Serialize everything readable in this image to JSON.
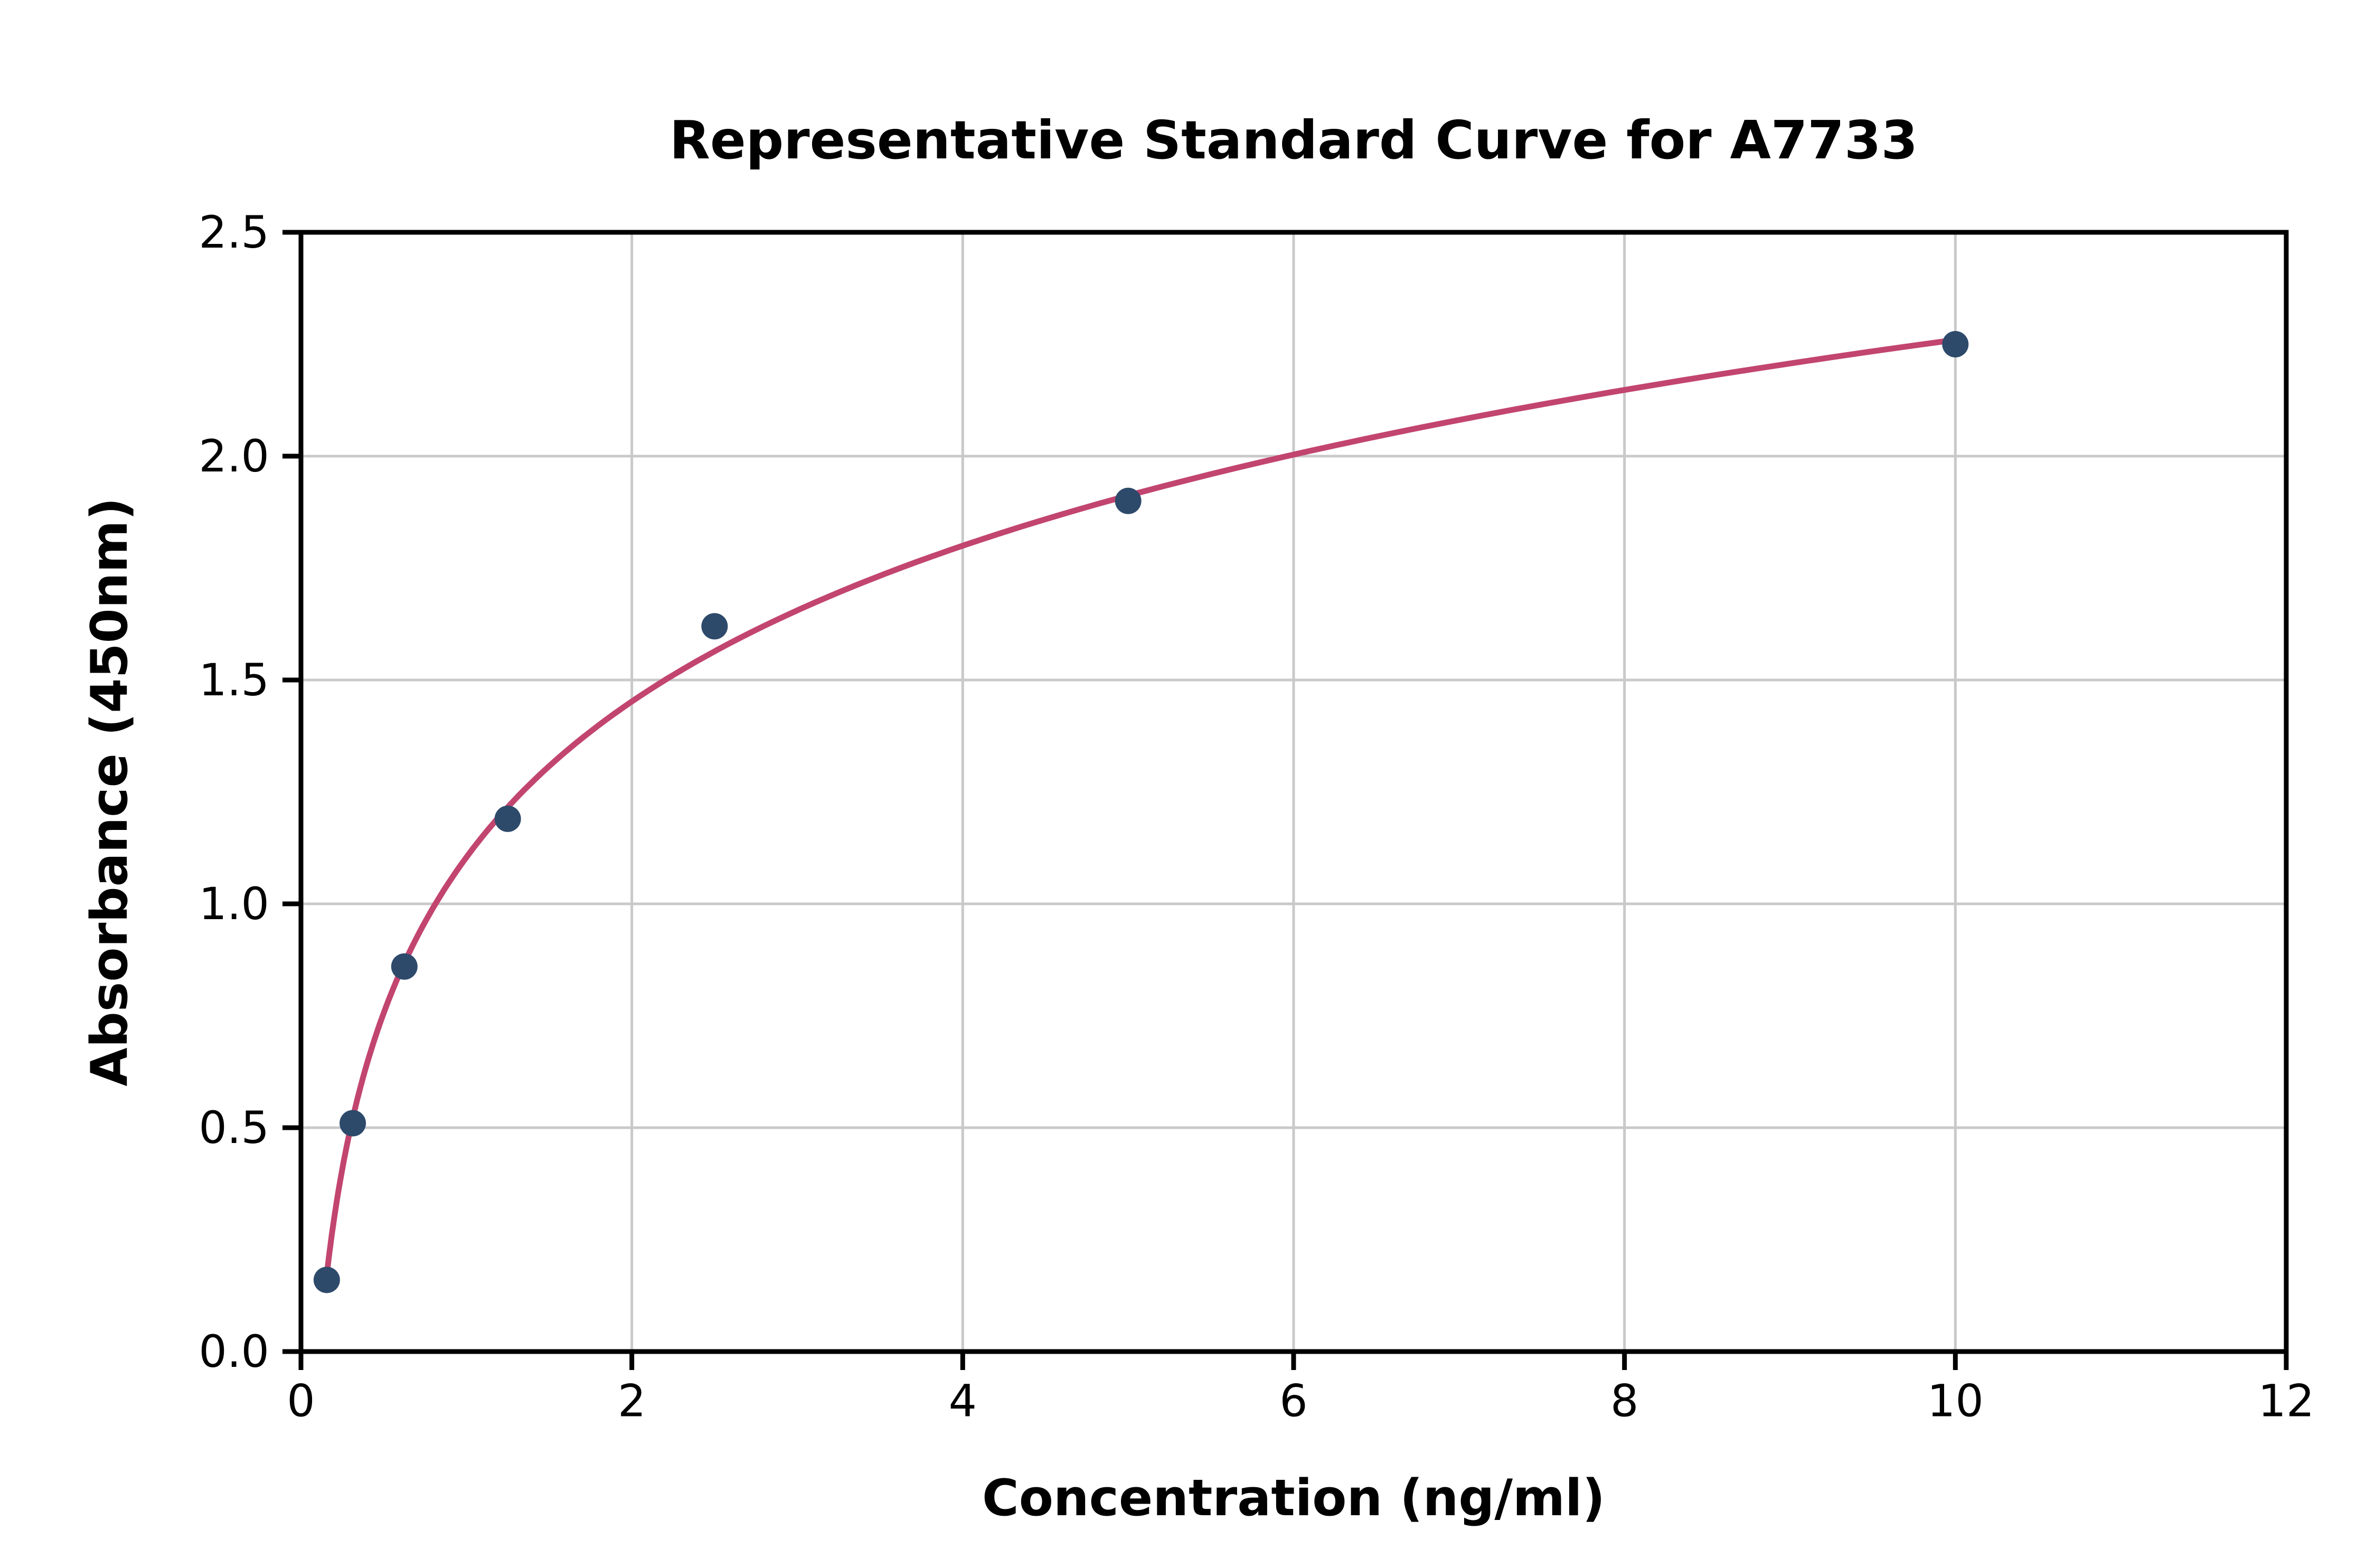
{
  "chart_data": {
    "type": "scatter",
    "title": "Representative Standard Curve for A7733",
    "xlabel": "Concentration (ng/ml)",
    "ylabel": "Absorbance (450nm)",
    "xlim": [
      0,
      12
    ],
    "ylim": [
      0,
      2.5
    ],
    "grid": true,
    "legend": "none",
    "xticks": {
      "values": [
        0,
        2,
        4,
        6,
        8,
        10,
        12
      ],
      "labels": [
        "0",
        "2",
        "4",
        "6",
        "8",
        "10",
        "12"
      ]
    },
    "yticks": {
      "values": [
        0,
        0.5,
        1.0,
        1.5,
        2.0,
        2.5
      ],
      "labels": [
        "0.0",
        "0.5",
        "1.0",
        "1.5",
        "2.0",
        "2.5"
      ]
    },
    "points": {
      "x": [
        0.156,
        0.313,
        0.625,
        1.25,
        2.5,
        5,
        10
      ],
      "y": [
        0.16,
        0.51,
        0.86,
        1.19,
        1.62,
        1.9,
        2.25
      ]
    },
    "fit_curve": {
      "model": "y = a*ln(x) + b",
      "a": 0.502,
      "b": 1.104,
      "x_start": 0.156,
      "x_end": 10
    },
    "colors": {
      "points": "#2e4a6b",
      "curve": "#c2456f",
      "grid": "#c9c9c9",
      "axes": "#000000",
      "text": "#000000"
    }
  }
}
